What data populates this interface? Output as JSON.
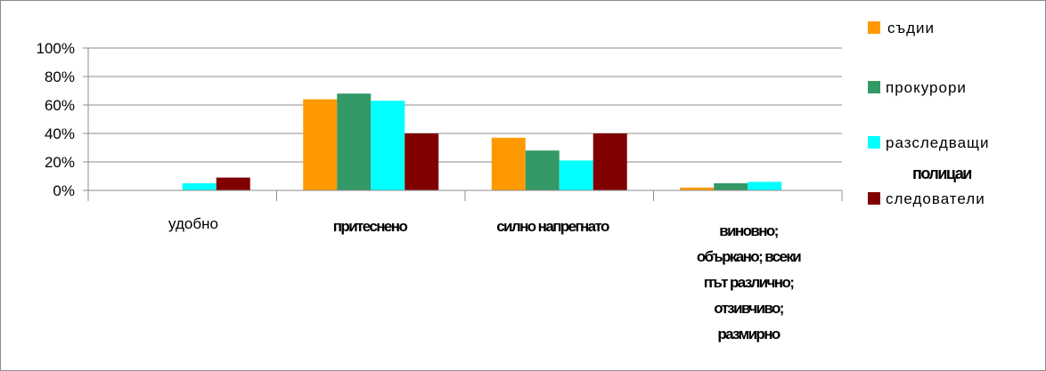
{
  "chart_data": {
    "type": "bar",
    "categories": [
      "удобно",
      "притеснено",
      "силно напрегнато",
      "виновно; объркано; всеки път различно; отзивчиво; размирно"
    ],
    "series": [
      {
        "name": "съдии",
        "color": "#ff9900",
        "values": [
          0,
          64,
          37,
          2
        ]
      },
      {
        "name": "прокурори",
        "color": "#339966",
        "values": [
          0,
          68,
          28,
          5
        ]
      },
      {
        "name": "разследващи полицаи",
        "color": "#00ffff",
        "values": [
          5,
          63,
          21,
          6
        ]
      },
      {
        "name": "следователи",
        "color": "#800000",
        "values": [
          9,
          40,
          40,
          0
        ]
      }
    ],
    "ylim": [
      0,
      100
    ],
    "yticks": [
      "0%",
      "20%",
      "40%",
      "60%",
      "80%",
      "100%"
    ],
    "grid": true,
    "legend_position": "right"
  },
  "legend": [
    {
      "line1": "съдии"
    },
    {
      "line1": "прокурори"
    },
    {
      "line1": "разследващи",
      "line2": "полицаи"
    },
    {
      "line1": "следователи"
    }
  ],
  "category_lines": [
    [
      "удобно"
    ],
    [
      "притеснено"
    ],
    [
      "силно напрегнато"
    ],
    [
      "виновно;",
      "объркано; всеки",
      "път различно;",
      "отзивчиво;",
      "размирно"
    ]
  ]
}
